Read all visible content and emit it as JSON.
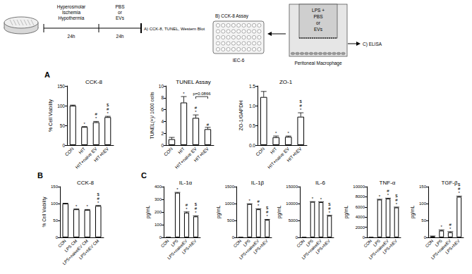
{
  "diagram": {
    "step1": {
      "lines": [
        "Hyperosmolar",
        "Ischemia",
        "Hypothermia"
      ],
      "duration": "24h"
    },
    "step2": {
      "lines": [
        "PBS",
        "or",
        "EVs"
      ],
      "duration": "24h"
    },
    "readout_a": "A) CCK-8, TUNEL, Western Blot",
    "readout_b": "B) CCK-8 Assay",
    "plate_cells": "IEC-6",
    "transwell_lines": [
      "LPS +",
      "PBS",
      "or",
      "EVs"
    ],
    "transwell_cells": "Peritoneal Macrophage",
    "readout_c": "C) ELISA"
  },
  "chart_data": [
    {
      "type": "bar",
      "panel": "A",
      "title": "CCK-8",
      "y_label": "% Cell Viability",
      "categories": [
        "CON",
        "HIT",
        "HIT+naive EV",
        "HIT+hEV"
      ],
      "values": [
        100,
        46,
        58,
        71
      ],
      "errors": [
        1.5,
        1,
        2,
        2
      ],
      "significance": [
        [],
        [
          "*"
        ],
        [
          "*",
          "#"
        ],
        [
          "*",
          "#",
          "$"
        ]
      ],
      "color": "#ffffff",
      "ylim": [
        0,
        150
      ],
      "yticks": [
        0,
        50,
        100,
        150
      ],
      "grid": false
    },
    {
      "type": "bar",
      "panel": "A",
      "title": "TUNEL Assay",
      "y_label": "TUNEL(+)/ 1000 cells",
      "categories": [
        "CON",
        "HIT",
        "HIT+naive EV",
        "HIT+hEV"
      ],
      "values": [
        1.0,
        7.2,
        4.6,
        2.7
      ],
      "errors": [
        0.3,
        1.0,
        0.5,
        0.3
      ],
      "significance": [
        [],
        [
          "*"
        ],
        [
          "*",
          "#"
        ],
        [
          "#"
        ]
      ],
      "annotation": {
        "text": "p=0.0866",
        "between": [
          2,
          3
        ]
      },
      "color": "#ffffff",
      "ylim": [
        0,
        10
      ],
      "yticks": [
        0,
        2,
        4,
        6,
        8,
        10
      ],
      "grid": false
    },
    {
      "type": "bar",
      "panel": "A",
      "title": "ZO-1",
      "y_label": "ZO-1/GAPDH",
      "categories": [
        "CON",
        "HIT",
        "HIT+naive EV",
        "HIT+hEV"
      ],
      "values": [
        1.22,
        0.2,
        0.21,
        0.72
      ],
      "errors": [
        0.14,
        0.03,
        0.02,
        0.1
      ],
      "significance": [
        [],
        [
          "*"
        ],
        [
          "*"
        ],
        [
          "*",
          "#",
          "$"
        ]
      ],
      "color": "#ffffff",
      "ylim": [
        0,
        1.5
      ],
      "yticks": [
        {
          "value": 0,
          "label": "0.0"
        },
        0.5,
        {
          "value": 1,
          "label": "1.0"
        },
        1.5
      ],
      "grid": false
    },
    {
      "type": "bar",
      "panel": "B",
      "title": "CCK-8",
      "y_label": "% Cell Viability",
      "categories": [
        "CON",
        "LPS CM",
        "LPS+naiveEV CM",
        "LPS+hEV CM"
      ],
      "values": [
        100,
        83,
        81,
        93
      ],
      "errors": [
        1,
        1,
        1.5,
        1.5
      ],
      "significance": [
        [],
        [
          "*"
        ],
        [
          "*"
        ],
        [
          "*",
          "#",
          "$"
        ]
      ],
      "color": "#ffffff",
      "ylim": [
        0,
        150
      ],
      "yticks": [
        0,
        50,
        100,
        150
      ],
      "grid": false
    },
    {
      "type": "bar",
      "panel": "C",
      "title": "IL-1α",
      "y_label": "pg/mL",
      "categories": [
        "CON",
        "LPS",
        "LPS+naiveEV",
        "LPS+hEV"
      ],
      "values": [
        0,
        352,
        195,
        165
      ],
      "errors": [
        0,
        3,
        6,
        5
      ],
      "significance": [
        [],
        [
          "*"
        ],
        [
          "*",
          "#"
        ],
        [
          "*",
          "#",
          "$"
        ]
      ],
      "color": "#ffffff",
      "ylim": [
        0,
        400
      ],
      "yticks": [
        0,
        100,
        200,
        300,
        400
      ],
      "grid": false
    },
    {
      "type": "bar",
      "panel": "C",
      "title": "IL-1β",
      "y_label": "pg/mL",
      "categories": [
        "CON",
        "LPS",
        "LPS+naiveEV",
        "LPS+hEV"
      ],
      "values": [
        0,
        985,
        830,
        520
      ],
      "errors": [
        0,
        10,
        15,
        12
      ],
      "significance": [
        [],
        [
          "*"
        ],
        [
          "*",
          "#"
        ],
        [
          "*",
          "#",
          "$"
        ]
      ],
      "color": "#ffffff",
      "ylim": [
        0,
        1500
      ],
      "yticks": [
        0,
        500,
        1000,
        1500
      ],
      "grid": false
    },
    {
      "type": "bar",
      "panel": "C",
      "title": "IL-6",
      "y_label": "pg/mL",
      "categories": [
        "CON",
        "LPS",
        "LPS+naiveEV",
        "LPS+hEV"
      ],
      "values": [
        0,
        10500,
        10400,
        6400
      ],
      "errors": [
        0,
        80,
        100,
        120
      ],
      "significance": [
        [],
        [
          "*"
        ],
        [
          "*"
        ],
        [
          "*",
          "#",
          "$"
        ]
      ],
      "color": "#ffffff",
      "ylim": [
        0,
        15000
      ],
      "yticks": [
        0,
        5000,
        10000,
        15000
      ],
      "grid": false
    },
    {
      "type": "bar",
      "panel": "C",
      "title": "TNF-α",
      "y_label": "pg/mL",
      "categories": [
        "CON",
        "LPS",
        "LPS+naiveEV",
        "LPS+hEV"
      ],
      "values": [
        0,
        7450,
        7650,
        5900
      ],
      "errors": [
        0,
        60,
        80,
        70
      ],
      "significance": [
        [],
        [
          "*"
        ],
        [
          "*",
          "#"
        ],
        [
          "*",
          "#",
          "$"
        ]
      ],
      "color": "#ffffff",
      "ylim": [
        0,
        10000
      ],
      "yticks": [
        0,
        2000,
        4000,
        6000,
        8000,
        10000
      ],
      "grid": false
    },
    {
      "type": "bar",
      "panel": "C",
      "title": "TGF-β",
      "y_label": "pg/mL",
      "categories": [
        "CON",
        "LPS",
        "LPS+naiveEV",
        "LPS+hEV"
      ],
      "values": [
        3,
        20,
        15,
        120
      ],
      "errors": [
        1,
        2,
        2,
        2
      ],
      "significance": [
        [],
        [
          "*"
        ],
        [
          "*",
          "#"
        ],
        [
          "*",
          "#",
          "$"
        ]
      ],
      "color": "#ffffff",
      "ylim": [
        0,
        150
      ],
      "yticks": [
        0,
        50,
        100,
        150
      ],
      "grid": false
    }
  ]
}
